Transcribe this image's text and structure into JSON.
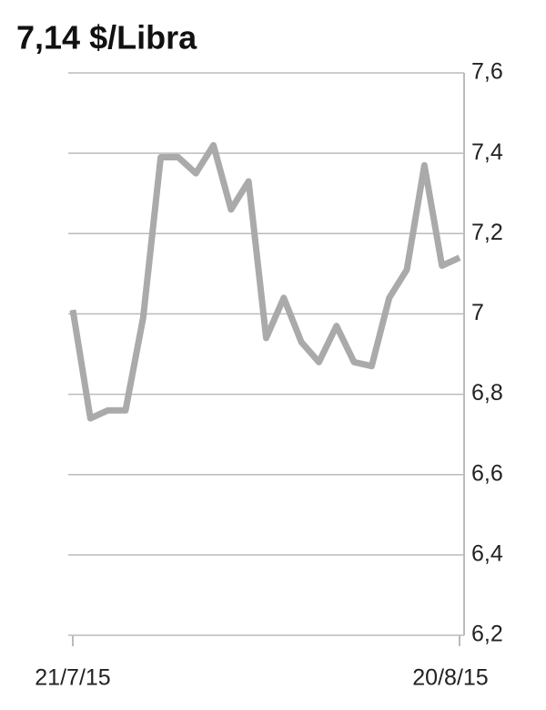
{
  "chart_data": {
    "type": "line",
    "title": "7,14 $/Libra",
    "categories": [
      "21/7/15",
      null,
      null,
      null,
      null,
      null,
      null,
      null,
      null,
      null,
      null,
      null,
      null,
      null,
      null,
      null,
      null,
      null,
      null,
      null,
      null,
      null,
      "20/8/15"
    ],
    "series": [
      {
        "color": "#aaaaaa",
        "values": [
          7.01,
          6.74,
          6.76,
          6.76,
          6.99,
          7.39,
          7.39,
          7.35,
          7.42,
          7.26,
          7.33,
          6.94,
          7.04,
          6.93,
          6.88,
          6.97,
          6.88,
          6.87,
          7.04,
          7.11,
          7.37,
          7.12,
          7.14
        ]
      }
    ],
    "ylim": [
      6.2,
      7.6
    ],
    "yticks": [
      {
        "value": 6.2,
        "label": "6,2"
      },
      {
        "value": 6.4,
        "label": "6,4"
      },
      {
        "value": 6.6,
        "label": "6,6"
      },
      {
        "value": 6.8,
        "label": "6,8"
      },
      7,
      {
        "value": 7.2,
        "label": "7,2"
      },
      {
        "value": 7.4,
        "label": "7,4"
      },
      {
        "value": 7.6,
        "label": "7,6"
      }
    ],
    "grid": true
  }
}
